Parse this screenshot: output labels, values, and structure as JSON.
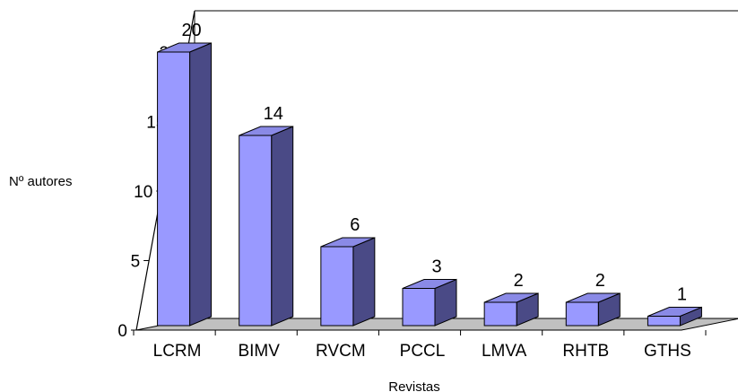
{
  "chart_data": {
    "type": "bar",
    "style": "3d-column",
    "categories": [
      "LCRM",
      "BIMV",
      "RVCM",
      "PCCL",
      "LMVA",
      "RHTB",
      "GTHS"
    ],
    "values": [
      20,
      14,
      6,
      3,
      2,
      2,
      1
    ],
    "xlabel": "Revistas",
    "ylabel": "Nº autores",
    "ylim": [
      0,
      20
    ],
    "yticks": [
      0,
      5,
      10,
      15,
      20
    ],
    "grid": false,
    "legend": "none",
    "colors": {
      "bar_front": "#9999ff",
      "bar_side": "#4a4a86",
      "bar_top": "#8a8ae6",
      "floor": "#c0c0c0",
      "outline": "#000000"
    }
  }
}
